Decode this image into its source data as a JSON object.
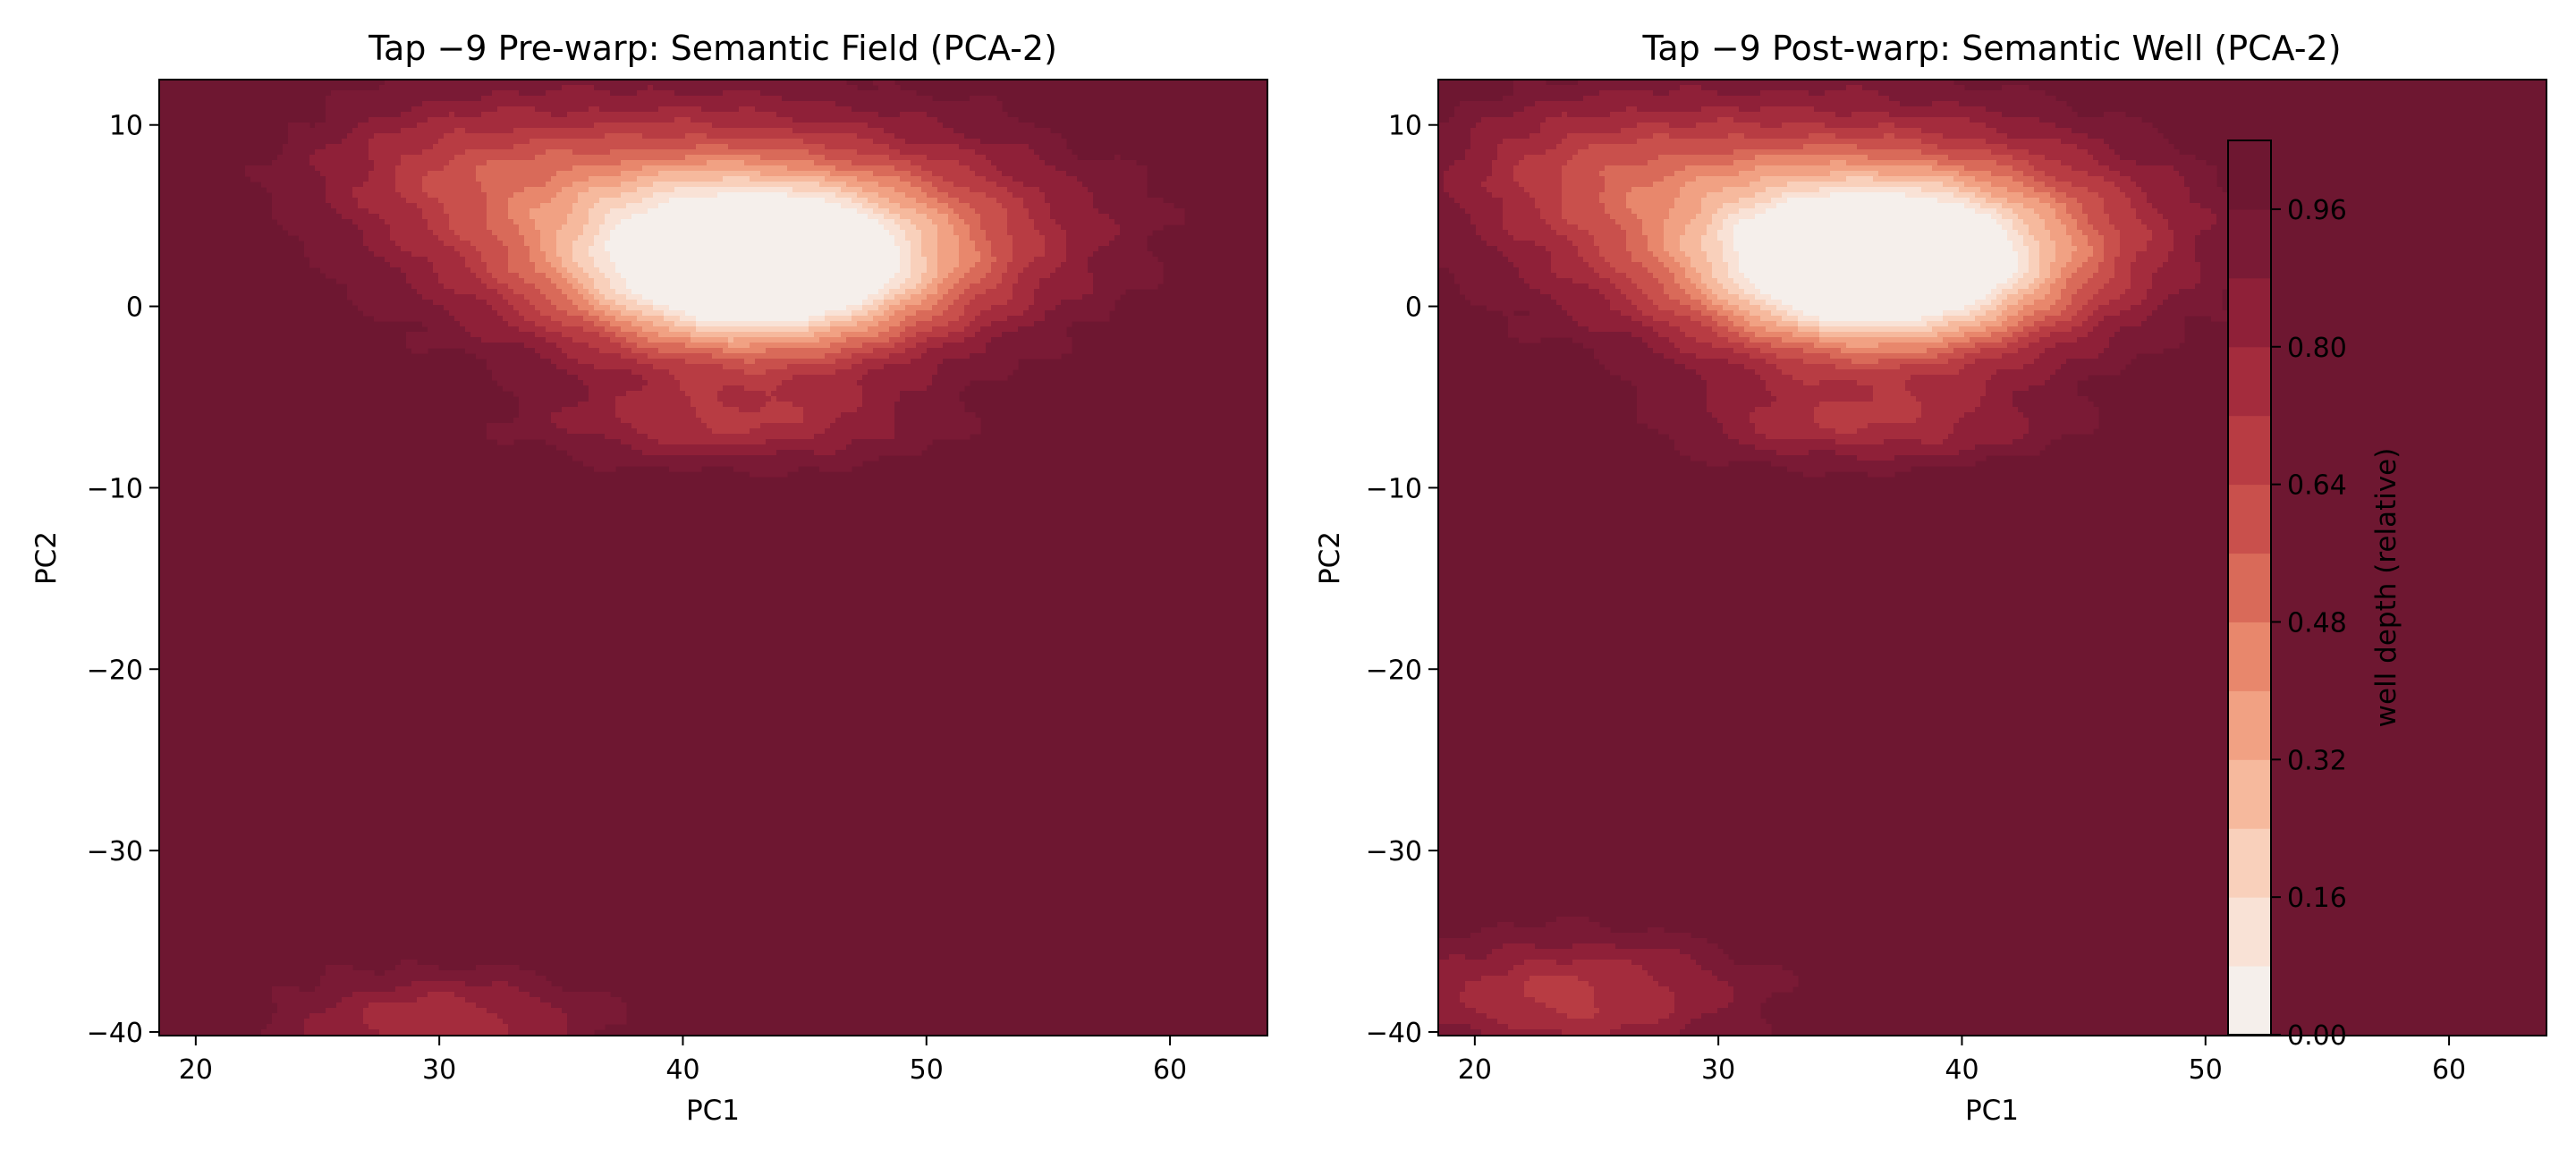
{
  "chart_data": [
    {
      "type": "contour",
      "title": "Tap −9 Pre-warp: Semantic Field (PCA-2)",
      "xlabel": "PC1",
      "ylabel": "PC2",
      "xlim": [
        18.5,
        64
      ],
      "ylim": [
        -40.2,
        12.5
      ],
      "xticks": [
        20,
        30,
        40,
        50,
        60
      ],
      "yticks": [
        10,
        0,
        -10,
        -20,
        -30,
        -40
      ],
      "ytick_labels": [
        "10",
        "0",
        "−10",
        "−20",
        "−30",
        "−40"
      ],
      "grid": false,
      "blobs": [
        {
          "x": 43,
          "y": 1.7,
          "sx": 5.0,
          "sy": 3.2,
          "depth": 1.0
        },
        {
          "x": 38.5,
          "y": 5.0,
          "sx": 7.0,
          "sy": 4.2,
          "depth": 0.55
        },
        {
          "x": 49,
          "y": 4.0,
          "sx": 6.0,
          "sy": 3.6,
          "depth": 0.35
        },
        {
          "x": 30,
          "y": 8.0,
          "sx": 4.0,
          "sy": 2.5,
          "depth": 0.18
        },
        {
          "x": 42,
          "y": -6.5,
          "sx": 5.5,
          "sy": 1.6,
          "depth": 0.28
        },
        {
          "x": 30,
          "y": -39.5,
          "sx": 4.5,
          "sy": 2.0,
          "depth": 0.3
        }
      ]
    },
    {
      "type": "contour",
      "title": "Tap −9 Post-warp: Semantic Well (PCA-2)",
      "xlabel": "PC1",
      "ylabel": "PC2",
      "xlim": [
        18.5,
        64
      ],
      "ylim": [
        -40.2,
        12.5
      ],
      "xticks": [
        20,
        30,
        40,
        50,
        60
      ],
      "yticks": [
        10,
        0,
        -10,
        -20,
        -30,
        -40
      ],
      "ytick_labels": [
        "10",
        "0",
        "−10",
        "−20",
        "−30",
        "−40"
      ],
      "grid": false,
      "blobs": [
        {
          "x": 36.5,
          "y": 1.7,
          "sx": 4.8,
          "sy": 3.2,
          "depth": 1.0
        },
        {
          "x": 32,
          "y": 5.0,
          "sx": 7.0,
          "sy": 4.2,
          "depth": 0.55
        },
        {
          "x": 42,
          "y": 4.0,
          "sx": 5.5,
          "sy": 3.6,
          "depth": 0.35
        },
        {
          "x": 24,
          "y": 8.0,
          "sx": 4.0,
          "sy": 2.5,
          "depth": 0.18
        },
        {
          "x": 36,
          "y": -6.5,
          "sx": 5.5,
          "sy": 1.6,
          "depth": 0.28
        },
        {
          "x": 24,
          "y": -38.0,
          "sx": 5.0,
          "sy": 2.3,
          "depth": 0.35
        }
      ]
    }
  ],
  "colorbar": {
    "label": "well depth (relative)",
    "levels": [
      0.0,
      0.08,
      0.16,
      0.24,
      0.32,
      0.4,
      0.48,
      0.56,
      0.64,
      0.72,
      0.8,
      0.88,
      0.96,
      1.04
    ],
    "tick_values": [
      0.0,
      0.16,
      0.32,
      0.48,
      0.64,
      0.8,
      0.96
    ],
    "tick_labels": [
      "0.00",
      "0.16",
      "0.32",
      "0.48",
      "0.64",
      "0.80",
      "0.96"
    ],
    "colors": [
      "#f5efeb",
      "#f9e2d6",
      "#f9d0bb",
      "#f6b99d",
      "#f1a183",
      "#e8876c",
      "#d96a59",
      "#c9504c",
      "#b83c43",
      "#a42c3d",
      "#8f2038",
      "#7a1a35",
      "#6e1731"
    ]
  }
}
